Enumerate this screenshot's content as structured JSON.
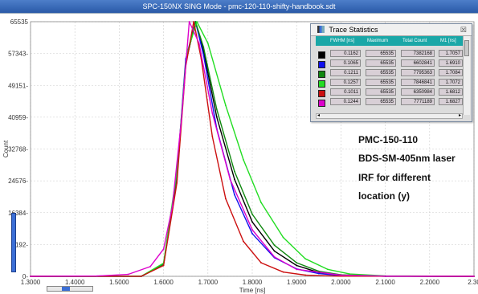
{
  "window": {
    "title": "SPC-150NX  SING Mode - pmc-120-110-shifty-handbook.sdt"
  },
  "chart_data": {
    "type": "line",
    "ylabel": "Count",
    "xlabel": "Time [ns]",
    "xlim": [
      1.3,
      2.3
    ],
    "ylim": [
      0,
      65535
    ],
    "x_ticks": [
      "1.3000",
      "1.4000",
      "1.5000",
      "1.6000",
      "1.7000",
      "1.8000",
      "1.9000",
      "2.0000",
      "2.1000",
      "2.2000",
      "2.30"
    ],
    "y_ticks": [
      "65535",
      "57343",
      "49151",
      "40959",
      "32768",
      "24576",
      "16384",
      "8192",
      "0"
    ],
    "series": [
      {
        "color": "#000000",
        "values": [
          [
            1.3,
            0
          ],
          [
            1.55,
            30
          ],
          [
            1.6,
            3000
          ],
          [
            1.63,
            25000
          ],
          [
            1.65,
            55000
          ],
          [
            1.672,
            65535
          ],
          [
            1.69,
            58000
          ],
          [
            1.72,
            41000
          ],
          [
            1.76,
            25000
          ],
          [
            1.8,
            14000
          ],
          [
            1.85,
            6500
          ],
          [
            1.9,
            2800
          ],
          [
            1.95,
            1000
          ],
          [
            2.0,
            300
          ],
          [
            2.1,
            30
          ],
          [
            2.3,
            0
          ]
        ]
      },
      {
        "color": "#1010ee",
        "values": [
          [
            1.3,
            0
          ],
          [
            1.55,
            30
          ],
          [
            1.6,
            3200
          ],
          [
            1.63,
            26000
          ],
          [
            1.65,
            56000
          ],
          [
            1.672,
            65535
          ],
          [
            1.69,
            57000
          ],
          [
            1.72,
            38000
          ],
          [
            1.76,
            21000
          ],
          [
            1.8,
            11000
          ],
          [
            1.85,
            4800
          ],
          [
            1.9,
            1900
          ],
          [
            1.95,
            700
          ],
          [
            2.0,
            200
          ],
          [
            2.1,
            20
          ],
          [
            2.3,
            0
          ]
        ]
      },
      {
        "color": "#108810",
        "values": [
          [
            1.3,
            0
          ],
          [
            1.55,
            30
          ],
          [
            1.6,
            3000
          ],
          [
            1.63,
            25000
          ],
          [
            1.65,
            55000
          ],
          [
            1.672,
            65535
          ],
          [
            1.69,
            59000
          ],
          [
            1.72,
            43000
          ],
          [
            1.76,
            27000
          ],
          [
            1.8,
            16000
          ],
          [
            1.85,
            8000
          ],
          [
            1.9,
            3500
          ],
          [
            1.95,
            1300
          ],
          [
            2.0,
            400
          ],
          [
            2.1,
            40
          ],
          [
            2.3,
            0
          ]
        ]
      },
      {
        "color": "#22dd22",
        "values": [
          [
            1.3,
            0
          ],
          [
            1.55,
            40
          ],
          [
            1.6,
            3400
          ],
          [
            1.63,
            27000
          ],
          [
            1.652,
            57000
          ],
          [
            1.675,
            65535
          ],
          [
            1.7,
            60000
          ],
          [
            1.74,
            44000
          ],
          [
            1.78,
            30000
          ],
          [
            1.82,
            19000
          ],
          [
            1.87,
            10000
          ],
          [
            1.92,
            4500
          ],
          [
            1.97,
            1800
          ],
          [
            2.02,
            600
          ],
          [
            2.1,
            100
          ],
          [
            2.3,
            0
          ]
        ]
      },
      {
        "color": "#cc1010",
        "values": [
          [
            1.3,
            0
          ],
          [
            1.55,
            30
          ],
          [
            1.6,
            2800
          ],
          [
            1.63,
            24000
          ],
          [
            1.65,
            54000
          ],
          [
            1.668,
            65535
          ],
          [
            1.685,
            56000
          ],
          [
            1.71,
            36000
          ],
          [
            1.74,
            20000
          ],
          [
            1.78,
            9000
          ],
          [
            1.82,
            3500
          ],
          [
            1.87,
            1100
          ],
          [
            1.92,
            300
          ],
          [
            2.0,
            50
          ],
          [
            2.3,
            0
          ]
        ]
      },
      {
        "color": "#dd00cc",
        "values": [
          [
            1.3,
            0
          ],
          [
            1.45,
            80
          ],
          [
            1.52,
            500
          ],
          [
            1.57,
            2500
          ],
          [
            1.6,
            7000
          ],
          [
            1.62,
            18000
          ],
          [
            1.64,
            40000
          ],
          [
            1.658,
            65535
          ],
          [
            1.68,
            60000
          ],
          [
            1.71,
            42000
          ],
          [
            1.75,
            25000
          ],
          [
            1.8,
            12000
          ],
          [
            1.85,
            5000
          ],
          [
            1.9,
            1800
          ],
          [
            2.0,
            300
          ],
          [
            2.1,
            60
          ],
          [
            2.3,
            0
          ]
        ]
      }
    ]
  },
  "trace_stats": {
    "title": "Trace Statistics",
    "close_label": "☒",
    "headers": [
      "FWHM [ns]",
      "Maximum",
      "Total Count",
      "M1 [ns]"
    ],
    "rows": [
      {
        "color": "#000000",
        "fwhm": "0.1162",
        "max": "65535",
        "total": "7382168",
        "m1": "1.7057"
      },
      {
        "color": "#1010ee",
        "fwhm": "0.1065",
        "max": "65535",
        "total": "6602841",
        "m1": "1.6910"
      },
      {
        "color": "#108810",
        "fwhm": "0.1211",
        "max": "65535",
        "total": "7795363",
        "m1": "1.7084"
      },
      {
        "color": "#22dd22",
        "fwhm": "0.1257",
        "max": "65535",
        "total": "7846841",
        "m1": "1.7072"
      },
      {
        "color": "#cc1010",
        "fwhm": "0.1011",
        "max": "65535",
        "total": "6350984",
        "m1": "1.6812"
      },
      {
        "color": "#dd00cc",
        "fwhm": "0.1244",
        "max": "65535",
        "total": "7771189",
        "m1": "1.6827"
      }
    ]
  },
  "annotations": {
    "line1": "PMC-150-110",
    "line2": "BDS-SM-405nm laser",
    "line3": "IRF for different",
    "line4": "location (y)"
  }
}
